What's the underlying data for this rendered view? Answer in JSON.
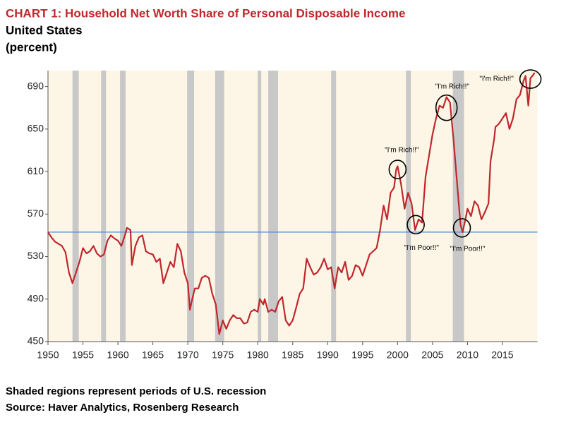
{
  "chart_data": {
    "type": "line",
    "title": "CHART 1: Household Net Worth Share of Personal Disposable Income",
    "subtitle": "United States",
    "units": "(percent)",
    "notes": [
      "Shaded regions represent periods of U.S. recession",
      "Source: Haver Analytics, Rosenberg Research"
    ],
    "xlim": [
      1950,
      2020
    ],
    "xticks": [
      1950,
      1955,
      1960,
      1965,
      1970,
      1975,
      1980,
      1985,
      1990,
      1995,
      2000,
      2005,
      2010,
      2015
    ],
    "ylim": [
      450,
      705
    ],
    "yticks": [
      450,
      490,
      530,
      570,
      610,
      650,
      690
    ],
    "recessions": [
      [
        1953.5,
        1954.4
      ],
      [
        1957.6,
        1958.3
      ],
      [
        1960.3,
        1961.1
      ],
      [
        1969.9,
        1970.9
      ],
      [
        1973.9,
        1975.2
      ],
      [
        1980.0,
        1980.5
      ],
      [
        1981.5,
        1982.9
      ],
      [
        1990.5,
        1991.2
      ],
      [
        2001.2,
        2001.9
      ],
      [
        2007.9,
        2009.5
      ]
    ],
    "reference_line": 553,
    "x": [
      1950,
      1950.5,
      1951,
      1951.5,
      1952,
      1952.5,
      1953,
      1953.5,
      1954,
      1954.5,
      1955,
      1955.5,
      1956,
      1956.5,
      1957,
      1957.5,
      1958,
      1958.5,
      1959,
      1959.5,
      1960,
      1960.5,
      1961,
      1961.3,
      1961.8,
      1962,
      1962.5,
      1963,
      1963.5,
      1964,
      1964.5,
      1965,
      1965.5,
      1966,
      1966.5,
      1967,
      1967.5,
      1968,
      1968.5,
      1969,
      1969.5,
      1970,
      1970.3,
      1970.7,
      1971,
      1971.5,
      1972,
      1972.5,
      1973,
      1973.5,
      1974,
      1974.5,
      1975,
      1975.5,
      1976,
      1976.5,
      1977,
      1977.5,
      1978,
      1978.5,
      1979,
      1979.5,
      1980,
      1980.3,
      1980.8,
      1981,
      1981.5,
      1982,
      1982.5,
      1983,
      1983.5,
      1984,
      1984.5,
      1985,
      1985.5,
      1986,
      1986.5,
      1987,
      1987.5,
      1988,
      1988.5,
      1989,
      1989.5,
      1990,
      1990.5,
      1991,
      1991.5,
      1992,
      1992.5,
      1993,
      1993.5,
      1994,
      1994.5,
      1995,
      1995.5,
      1996,
      1996.5,
      1997,
      1997.5,
      1998,
      1998.5,
      1999,
      1999.5,
      1999.8,
      2000,
      2000.5,
      2001,
      2001.5,
      2002,
      2002.5,
      2003,
      2003.5,
      2004,
      2004.5,
      2005,
      2005.5,
      2006,
      2006.5,
      2007,
      2007.5,
      2008,
      2008.5,
      2009,
      2009.3,
      2009.7,
      2010,
      2010.5,
      2011,
      2011.5,
      2012,
      2012.5,
      2013,
      2013.3,
      2013.8,
      2014,
      2014.5,
      2015,
      2015.5,
      2016,
      2016.5,
      2017,
      2017.5,
      2018,
      2018.3,
      2018.7,
      2019,
      2019.3,
      2019.6
    ],
    "series": [
      {
        "name": "Household net worth share of disposable income",
        "color": "#c0272d",
        "values": [
          553,
          548,
          544,
          542,
          540,
          534,
          515,
          505,
          515,
          525,
          538,
          533,
          535,
          540,
          533,
          530,
          532,
          545,
          550,
          547,
          545,
          540,
          550,
          557,
          555,
          522,
          540,
          548,
          550,
          535,
          533,
          532,
          525,
          528,
          505,
          515,
          525,
          520,
          542,
          535,
          515,
          505,
          480,
          492,
          500,
          500,
          510,
          512,
          510,
          495,
          485,
          457,
          470,
          462,
          470,
          475,
          472,
          472,
          467,
          468,
          478,
          480,
          478,
          490,
          485,
          490,
          478,
          480,
          478,
          488,
          492,
          470,
          465,
          470,
          482,
          495,
          500,
          528,
          520,
          513,
          515,
          520,
          528,
          518,
          520,
          500,
          520,
          515,
          525,
          508,
          512,
          522,
          520,
          512,
          522,
          532,
          535,
          538,
          555,
          578,
          565,
          590,
          595,
          612,
          615,
          598,
          575,
          590,
          580,
          555,
          565,
          562,
          605,
          625,
          645,
          660,
          672,
          670,
          680,
          675,
          640,
          600,
          560,
          553,
          565,
          575,
          568,
          582,
          578,
          565,
          572,
          580,
          620,
          640,
          652,
          655,
          660,
          665,
          650,
          660,
          678,
          682,
          695,
          700,
          672,
          698,
          700,
          703
        ]
      }
    ],
    "annotations": [
      {
        "text": "\"I'm Rich!!\"",
        "x": 2000,
        "y": 612
      },
      {
        "text": "\"I'm Poor!!\"",
        "x": 2002.6,
        "y": 560
      },
      {
        "text": "\"I'm Rich!!\"",
        "x": 2007,
        "y": 670
      },
      {
        "text": "\"I'm Poor!!\"",
        "x": 2009.2,
        "y": 557
      },
      {
        "text": "\"I'm Rich!!\"",
        "x": 2019,
        "y": 697
      }
    ]
  }
}
